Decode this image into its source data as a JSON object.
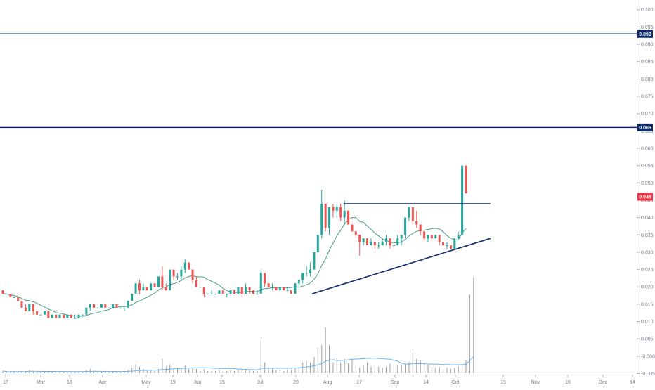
{
  "chart_data": {
    "type": "candlestick",
    "y_axis": {
      "ticks": [
        "0.100",
        "0.095",
        "0.090",
        "0.085",
        "0.080",
        "0.075",
        "0.070",
        "0.065",
        "0.060",
        "0.055",
        "0.050",
        "0.045",
        "0.040",
        "0.035",
        "0.030",
        "0.025",
        "0.020",
        "0.015",
        "0.010",
        "0.005",
        "-0.000",
        "-0.005"
      ],
      "range": [
        -0.005,
        0.1
      ]
    },
    "x_axis": {
      "ticks": [
        "17",
        "Mar",
        "16",
        "Apr",
        "May",
        "19",
        "Jun",
        "15",
        "Jul",
        "20",
        "Aug",
        "17",
        "Sep",
        "14",
        "Oct",
        "19",
        "Nov",
        "16",
        "Dec",
        "14"
      ]
    },
    "price_labels": [
      {
        "value": 0.093,
        "label": "0.093",
        "color": "#0d2a6e"
      },
      {
        "value": 0.066,
        "label": "0.066",
        "color": "#0d2a6e"
      },
      {
        "value": 0.046,
        "label": "0.046",
        "color": "#f23645"
      }
    ],
    "horizontal_lines": [
      {
        "value": 0.093,
        "color": "#0d2a6e"
      },
      {
        "value": 0.066,
        "color": "#0d2a6e"
      }
    ],
    "resistance_line": {
      "value": 0.044,
      "from": "Aug 6",
      "to": "Oct 13"
    },
    "support_trendline": {
      "from": {
        "date": "Jul 23",
        "value": 0.018
      },
      "to": {
        "date": "Oct 13",
        "value": 0.034
      }
    },
    "colors": {
      "up": "#26a69a",
      "down": "#ef5350",
      "ma": "#4a9a8a",
      "volume": "#9e9e9e",
      "volume_ma": "#64b5f6",
      "line": "#0d2a6e"
    },
    "candles": [
      [
        0.019,
        0.019,
        0.019,
        0.018
      ],
      [
        0.018,
        0.018,
        0.018,
        0.018
      ],
      [
        0.018,
        0.018,
        0.018,
        0.017
      ],
      [
        0.017,
        0.017,
        0.017,
        0.017
      ],
      [
        0.017,
        0.017,
        0.016,
        0.016
      ],
      [
        0.016,
        0.016,
        0.014,
        0.014
      ],
      [
        0.014,
        0.015,
        0.013,
        0.013
      ],
      [
        0.013,
        0.015,
        0.013,
        0.015
      ],
      [
        0.015,
        0.015,
        0.012,
        0.013
      ],
      [
        0.013,
        0.013,
        0.012,
        0.012
      ],
      [
        0.012,
        0.012,
        0.012,
        0.012
      ],
      [
        0.012,
        0.013,
        0.012,
        0.013
      ],
      [
        0.013,
        0.013,
        0.011,
        0.011
      ],
      [
        0.011,
        0.012,
        0.011,
        0.012
      ],
      [
        0.012,
        0.012,
        0.011,
        0.011
      ],
      [
        0.011,
        0.012,
        0.011,
        0.012
      ],
      [
        0.012,
        0.012,
        0.011,
        0.011
      ],
      [
        0.011,
        0.012,
        0.011,
        0.012
      ],
      [
        0.012,
        0.012,
        0.011,
        0.011
      ],
      [
        0.011,
        0.012,
        0.011,
        0.011
      ],
      [
        0.011,
        0.012,
        0.011,
        0.012
      ],
      [
        0.012,
        0.012,
        0.012,
        0.012
      ],
      [
        0.012,
        0.014,
        0.012,
        0.014
      ],
      [
        0.014,
        0.015,
        0.013,
        0.015
      ],
      [
        0.015,
        0.015,
        0.014,
        0.014
      ],
      [
        0.014,
        0.014,
        0.014,
        0.014
      ],
      [
        0.014,
        0.015,
        0.014,
        0.015
      ],
      [
        0.015,
        0.015,
        0.014,
        0.014
      ],
      [
        0.014,
        0.014,
        0.014,
        0.014
      ],
      [
        0.014,
        0.015,
        0.014,
        0.015
      ],
      [
        0.015,
        0.015,
        0.014,
        0.014
      ],
      [
        0.014,
        0.014,
        0.014,
        0.014
      ],
      [
        0.014,
        0.014,
        0.013,
        0.014
      ],
      [
        0.014,
        0.016,
        0.014,
        0.016
      ],
      [
        0.016,
        0.018,
        0.016,
        0.018
      ],
      [
        0.018,
        0.021,
        0.018,
        0.021
      ],
      [
        0.021,
        0.022,
        0.018,
        0.019
      ],
      [
        0.019,
        0.021,
        0.019,
        0.02
      ],
      [
        0.02,
        0.02,
        0.019,
        0.019
      ],
      [
        0.019,
        0.021,
        0.019,
        0.021
      ],
      [
        0.021,
        0.021,
        0.02,
        0.02
      ],
      [
        0.02,
        0.023,
        0.02,
        0.023
      ],
      [
        0.023,
        0.026,
        0.019,
        0.02
      ],
      [
        0.02,
        0.021,
        0.019,
        0.019
      ],
      [
        0.019,
        0.025,
        0.019,
        0.025
      ],
      [
        0.025,
        0.025,
        0.022,
        0.023
      ],
      [
        0.023,
        0.024,
        0.022,
        0.023
      ],
      [
        0.023,
        0.026,
        0.022,
        0.025
      ],
      [
        0.025,
        0.028,
        0.024,
        0.027
      ],
      [
        0.027,
        0.027,
        0.025,
        0.025
      ],
      [
        0.025,
        0.025,
        0.021,
        0.022
      ],
      [
        0.022,
        0.023,
        0.02,
        0.02
      ],
      [
        0.02,
        0.02,
        0.02,
        0.02
      ],
      [
        0.02,
        0.02,
        0.017,
        0.018
      ],
      [
        0.018,
        0.018,
        0.018,
        0.018
      ],
      [
        0.018,
        0.019,
        0.018,
        0.018
      ],
      [
        0.018,
        0.018,
        0.018,
        0.018
      ],
      [
        0.018,
        0.019,
        0.018,
        0.019
      ],
      [
        0.019,
        0.019,
        0.018,
        0.018
      ],
      [
        0.018,
        0.018,
        0.017,
        0.018
      ],
      [
        0.018,
        0.019,
        0.018,
        0.019
      ],
      [
        0.019,
        0.019,
        0.018,
        0.018
      ],
      [
        0.018,
        0.02,
        0.018,
        0.02
      ],
      [
        0.02,
        0.02,
        0.017,
        0.018
      ],
      [
        0.018,
        0.021,
        0.018,
        0.02
      ],
      [
        0.02,
        0.02,
        0.018,
        0.019
      ],
      [
        0.019,
        0.019,
        0.018,
        0.018
      ],
      [
        0.018,
        0.019,
        0.018,
        0.018
      ],
      [
        0.018,
        0.025,
        0.018,
        0.024
      ],
      [
        0.024,
        0.024,
        0.02,
        0.021
      ],
      [
        0.021,
        0.021,
        0.02,
        0.02
      ],
      [
        0.02,
        0.021,
        0.019,
        0.02
      ],
      [
        0.02,
        0.02,
        0.019,
        0.019
      ],
      [
        0.019,
        0.02,
        0.019,
        0.02
      ],
      [
        0.02,
        0.02,
        0.019,
        0.019
      ],
      [
        0.019,
        0.02,
        0.019,
        0.019
      ],
      [
        0.019,
        0.019,
        0.018,
        0.018
      ],
      [
        0.018,
        0.021,
        0.018,
        0.021
      ],
      [
        0.021,
        0.022,
        0.02,
        0.022
      ],
      [
        0.022,
        0.024,
        0.021,
        0.024
      ],
      [
        0.024,
        0.026,
        0.023,
        0.024
      ],
      [
        0.024,
        0.027,
        0.023,
        0.025
      ],
      [
        0.025,
        0.03,
        0.025,
        0.03
      ],
      [
        0.03,
        0.035,
        0.03,
        0.035
      ],
      [
        0.035,
        0.048,
        0.034,
        0.044
      ],
      [
        0.044,
        0.044,
        0.036,
        0.037
      ],
      [
        0.037,
        0.043,
        0.035,
        0.043
      ],
      [
        0.043,
        0.044,
        0.04,
        0.042
      ],
      [
        0.042,
        0.044,
        0.04,
        0.043
      ],
      [
        0.043,
        0.044,
        0.039,
        0.04
      ],
      [
        0.04,
        0.045,
        0.038,
        0.042
      ],
      [
        0.042,
        0.042,
        0.038,
        0.038
      ],
      [
        0.038,
        0.038,
        0.036,
        0.036
      ],
      [
        0.036,
        0.036,
        0.034,
        0.035
      ],
      [
        0.035,
        0.035,
        0.029,
        0.033
      ],
      [
        0.033,
        0.034,
        0.032,
        0.034
      ],
      [
        0.034,
        0.034,
        0.032,
        0.032
      ],
      [
        0.032,
        0.034,
        0.032,
        0.033
      ],
      [
        0.033,
        0.033,
        0.031,
        0.032
      ],
      [
        0.032,
        0.033,
        0.031,
        0.032
      ],
      [
        0.032,
        0.034,
        0.032,
        0.033
      ],
      [
        0.033,
        0.035,
        0.032,
        0.034
      ],
      [
        0.034,
        0.034,
        0.031,
        0.032
      ],
      [
        0.032,
        0.032,
        0.032,
        0.032
      ],
      [
        0.032,
        0.035,
        0.032,
        0.034
      ],
      [
        0.034,
        0.035,
        0.032,
        0.035
      ],
      [
        0.035,
        0.04,
        0.034,
        0.04
      ],
      [
        0.04,
        0.043,
        0.039,
        0.043
      ],
      [
        0.043,
        0.043,
        0.038,
        0.039
      ],
      [
        0.039,
        0.042,
        0.037,
        0.038
      ],
      [
        0.038,
        0.038,
        0.035,
        0.036
      ],
      [
        0.036,
        0.036,
        0.033,
        0.034
      ],
      [
        0.034,
        0.035,
        0.033,
        0.035
      ],
      [
        0.035,
        0.035,
        0.034,
        0.034
      ],
      [
        0.034,
        0.035,
        0.034,
        0.035
      ],
      [
        0.035,
        0.035,
        0.032,
        0.033
      ],
      [
        0.033,
        0.033,
        0.032,
        0.032
      ],
      [
        0.032,
        0.033,
        0.031,
        0.032
      ],
      [
        0.032,
        0.032,
        0.031,
        0.031
      ],
      [
        0.031,
        0.034,
        0.031,
        0.034
      ],
      [
        0.034,
        0.036,
        0.034,
        0.035
      ],
      [
        0.035,
        0.055,
        0.035,
        0.055
      ],
      [
        0.055,
        0.055,
        0.047,
        0.047
      ]
    ],
    "volumes": [
      0.2,
      0.1,
      0.1,
      0.2,
      0.1,
      0.2,
      0.2,
      0.3,
      0.2,
      0.1,
      0.1,
      0.2,
      0.1,
      0.2,
      0.1,
      0.1,
      0.2,
      0.1,
      0.1,
      0.1,
      0.2,
      0.1,
      0.3,
      0.4,
      0.2,
      0.1,
      0.2,
      0.1,
      0.1,
      0.2,
      0.1,
      0.1,
      0.2,
      0.3,
      0.5,
      0.8,
      0.6,
      0.4,
      0.3,
      0.3,
      0.2,
      0.4,
      1.3,
      0.6,
      0.8,
      0.5,
      0.4,
      0.5,
      0.7,
      0.4,
      0.5,
      0.4,
      0.2,
      0.4,
      0.2,
      0.2,
      0.2,
      0.3,
      0.2,
      0.2,
      0.3,
      0.2,
      0.3,
      0.4,
      0.4,
      0.3,
      0.2,
      0.2,
      3.0,
      1.0,
      0.5,
      0.4,
      0.3,
      0.3,
      0.2,
      0.3,
      0.3,
      0.5,
      0.6,
      1.0,
      1.1,
      1.0,
      1.5,
      2.3,
      2.6,
      4.2,
      2.6,
      1.0,
      1.4,
      1.0,
      1.3,
      0.9,
      1.3,
      0.7,
      0.5,
      0.7,
      1.0,
      0.6,
      0.7,
      0.6,
      0.5,
      0.6,
      0.9,
      0.7,
      0.7,
      0.8,
      0.8,
      1.0,
      1.9,
      1.3,
      1.2,
      0.8,
      0.7,
      0.6,
      0.5,
      0.6,
      0.4,
      0.5,
      0.4,
      0.5,
      0.6,
      0.8,
      1.2,
      7.2,
      8.8
    ]
  }
}
